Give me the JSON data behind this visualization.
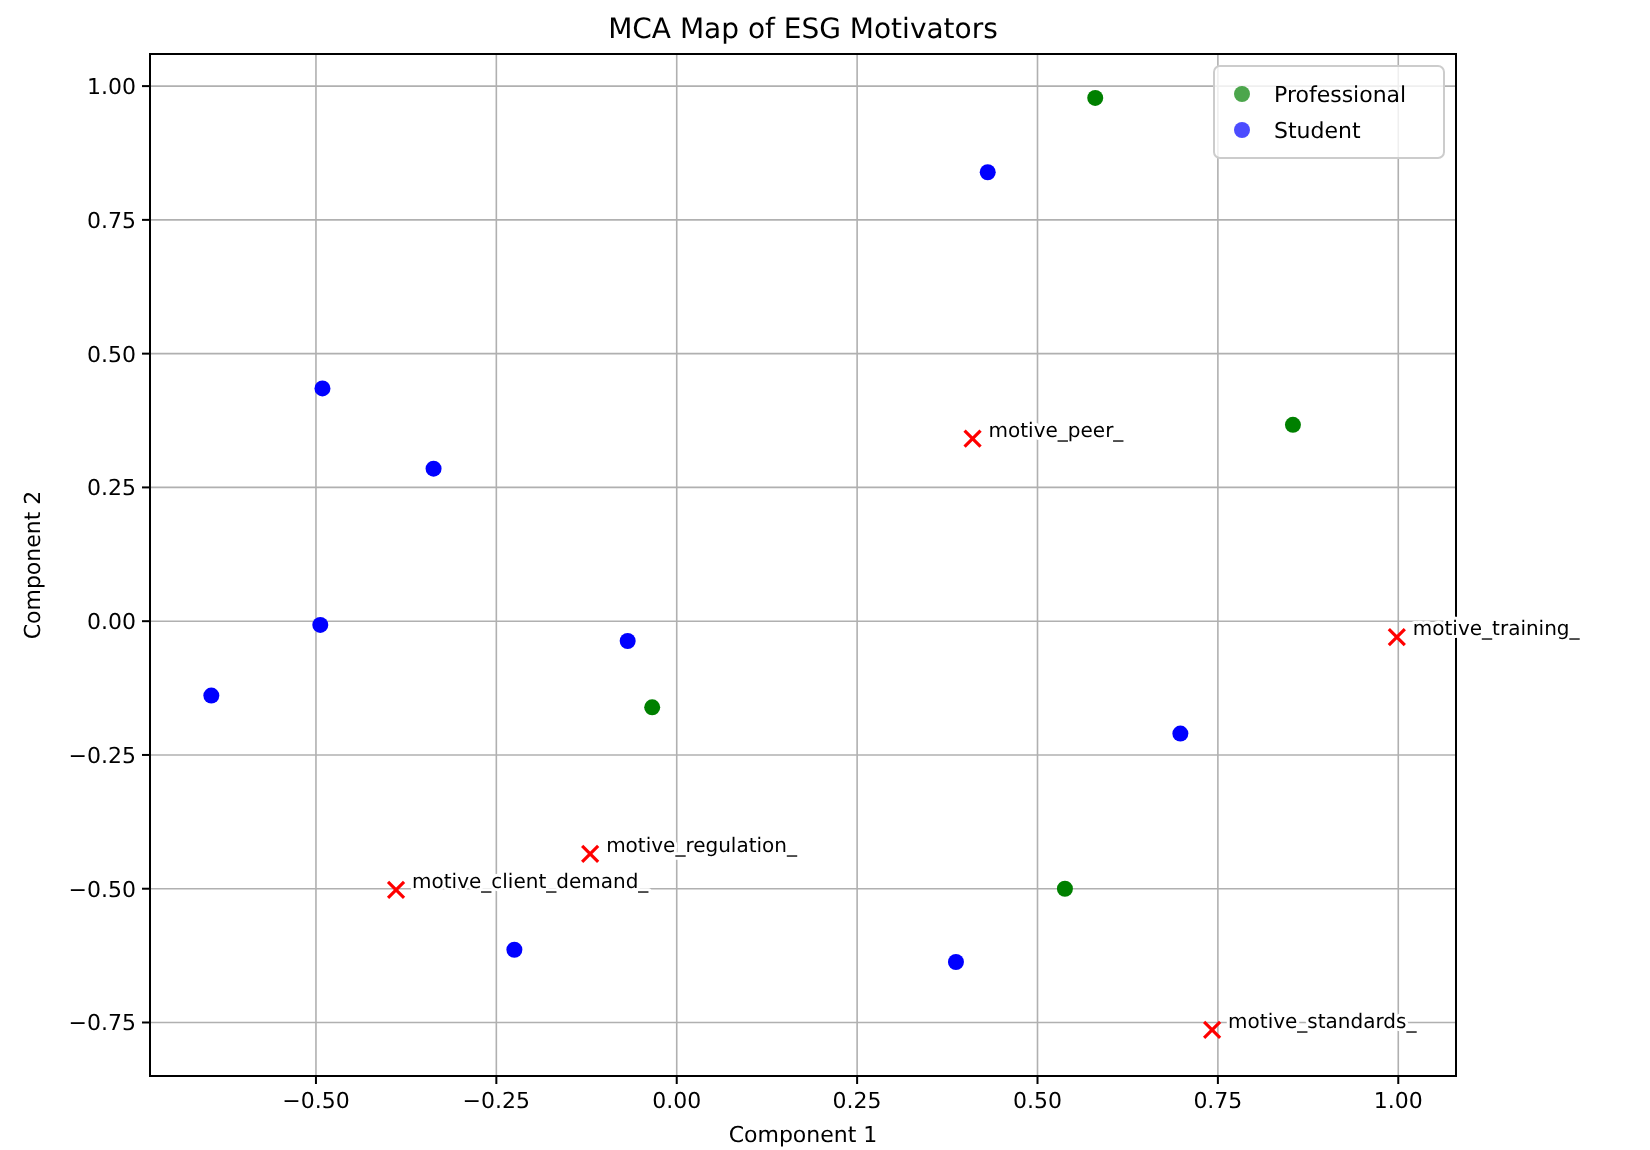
{
  "chart_data": {
    "type": "scatter",
    "title": "MCA Map of ESG Motivators",
    "xlabel": "Component 1",
    "ylabel": "Component 2",
    "xlim": [
      -0.73,
      1.08
    ],
    "ylim": [
      -0.85,
      1.06
    ],
    "xticks": [
      {
        "value": -0.5,
        "label": "−0.50"
      },
      {
        "value": -0.25,
        "label": "−0.25"
      },
      {
        "value": 0,
        "label": "0.00"
      },
      {
        "value": 0.25,
        "label": "0.25"
      },
      {
        "value": 0.5,
        "label": "0.50"
      },
      {
        "value": 0.75,
        "label": "0.75"
      },
      {
        "value": 1,
        "label": "1.00"
      }
    ],
    "yticks": [
      {
        "value": -0.75,
        "label": "−0.75"
      },
      {
        "value": -0.5,
        "label": "−0.50"
      },
      {
        "value": -0.25,
        "label": "−0.25"
      },
      {
        "value": 0,
        "label": "0.00"
      },
      {
        "value": 0.25,
        "label": "0.25"
      },
      {
        "value": 0.5,
        "label": "0.50"
      },
      {
        "value": 0.75,
        "label": "0.75"
      },
      {
        "value": 1,
        "label": "1.00"
      }
    ],
    "grid": true,
    "legend": "top right",
    "series": [
      {
        "name": "Professional",
        "color": "#008000",
        "marker": "circle",
        "x": [
          0.58,
          0.854,
          -0.034,
          0.538
        ],
        "values": [
          0.978,
          0.367,
          -0.161,
          -0.5
        ]
      },
      {
        "name": "Student",
        "color": "#0000ff",
        "marker": "circle",
        "x": [
          0.431,
          -0.491,
          -0.337,
          -0.494,
          -0.645,
          -0.068,
          0.698,
          -0.225,
          0.387
        ],
        "values": [
          0.839,
          0.435,
          0.285,
          -0.007,
          -0.139,
          -0.037,
          -0.21,
          -0.614,
          -0.637
        ]
      },
      {
        "color": "#ff0000",
        "marker": "cross",
        "x": [
          0.41,
          0.998,
          -0.12,
          -0.389,
          0.742
        ],
        "values": [
          0.341,
          -0.03,
          -0.435,
          -0.502,
          -0.764
        ]
      }
    ],
    "annotations": [
      {
        "text": "motive_peer_",
        "x": 0.41,
        "y": 0.341
      },
      {
        "text": "motive_training_",
        "x": 0.998,
        "y": -0.03
      },
      {
        "text": "motive_regulation_",
        "x": -0.12,
        "y": -0.435
      },
      {
        "text": "motive_client_demand_",
        "x": -0.389,
        "y": -0.502
      },
      {
        "text": "motive_standards_",
        "x": 0.742,
        "y": -0.764
      }
    ]
  }
}
